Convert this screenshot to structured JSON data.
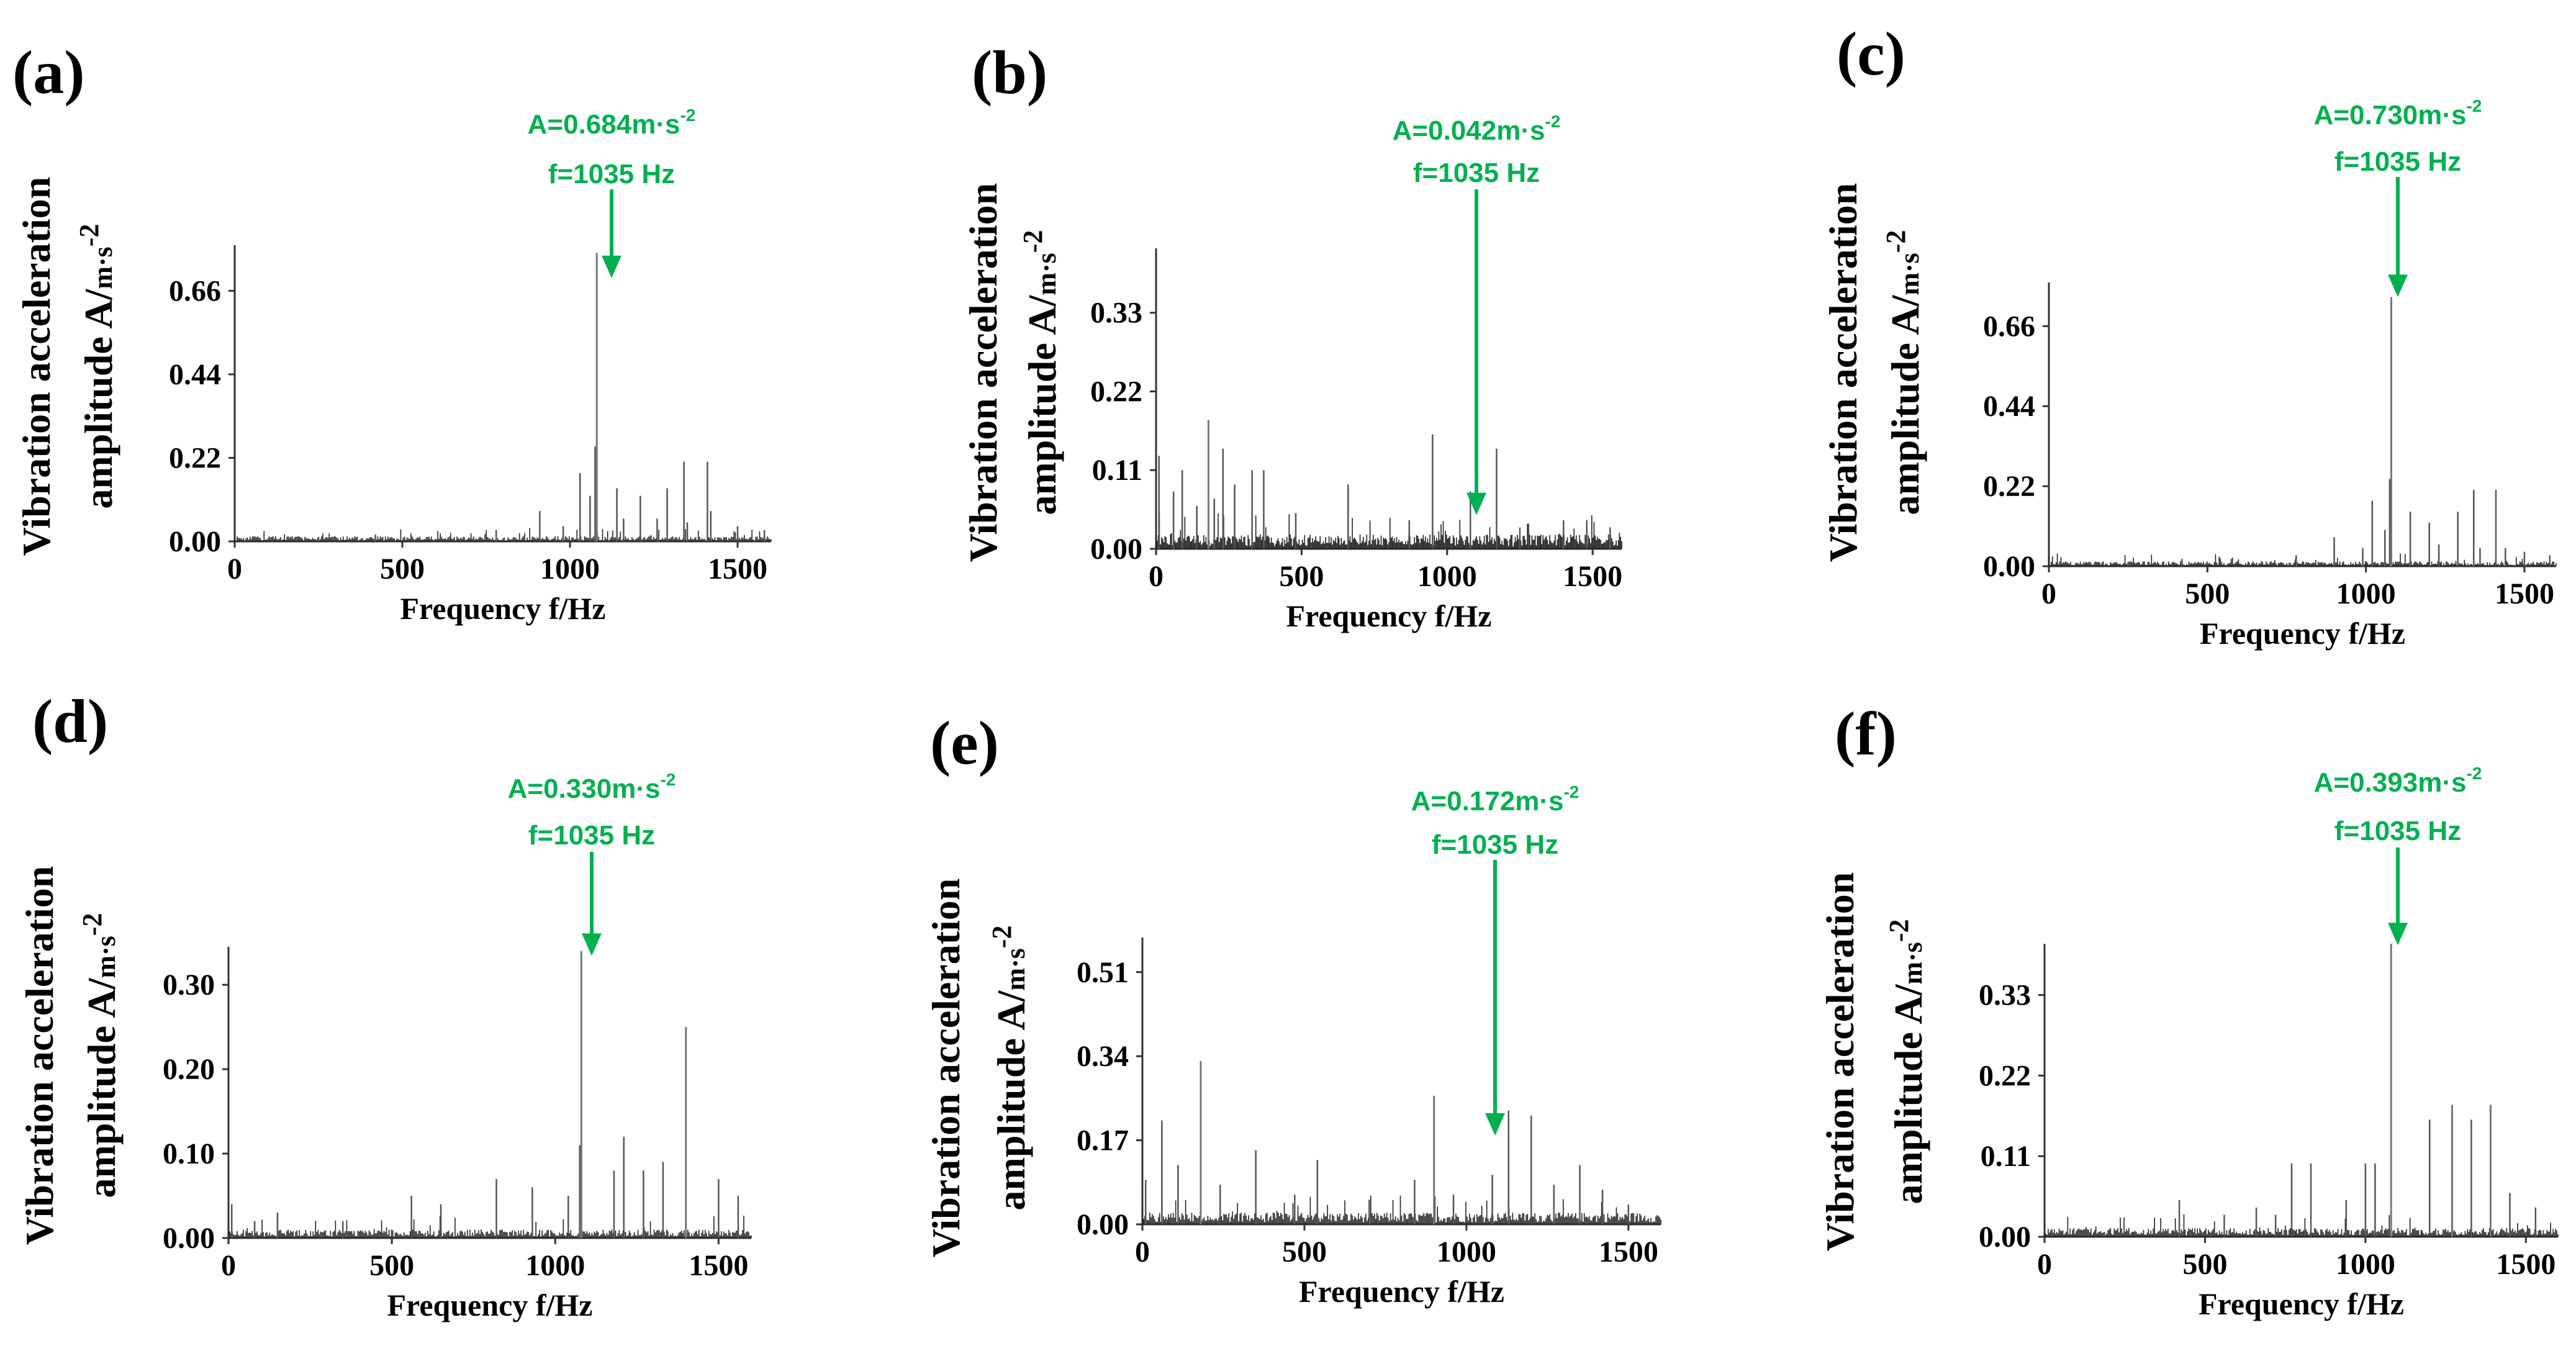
{
  "figure": {
    "y_unit": "m·s",
    "y_unit_exp": "-2"
  },
  "chart_data": [
    {
      "type": "line",
      "panel": "(a)",
      "title": "",
      "ylabel_line1": "Vibration acceleration",
      "ylabel_line2": "amplitude A/",
      "xlabel": "Frequency f/Hz",
      "xlim": [
        0,
        1600
      ],
      "ylim": [
        0,
        0.78
      ],
      "yticks": [
        "0.00",
        "0.22",
        "0.44",
        "0.66"
      ],
      "xticks": [
        "0",
        "500",
        "1000",
        "1500"
      ],
      "annotation": {
        "amp_label": "A=0.684m·s",
        "exp": "-2",
        "freq_label": "f=1035 Hz",
        "x": 1035,
        "y": 0.684
      },
      "peaks": [
        {
          "f": 250,
          "a": 0.012
        },
        {
          "f": 420,
          "a": 0.018
        },
        {
          "f": 780,
          "a": 0.03
        },
        {
          "f": 910,
          "a": 0.08
        },
        {
          "f": 980,
          "a": 0.04
        },
        {
          "f": 1030,
          "a": 0.18
        },
        {
          "f": 1060,
          "a": 0.12
        },
        {
          "f": 1075,
          "a": 0.25
        },
        {
          "f": 1080,
          "a": 0.76
        },
        {
          "f": 1140,
          "a": 0.14
        },
        {
          "f": 1160,
          "a": 0.06
        },
        {
          "f": 1210,
          "a": 0.12
        },
        {
          "f": 1260,
          "a": 0.06
        },
        {
          "f": 1290,
          "a": 0.14
        },
        {
          "f": 1340,
          "a": 0.21
        },
        {
          "f": 1350,
          "a": 0.05
        },
        {
          "f": 1410,
          "a": 0.21
        },
        {
          "f": 1420,
          "a": 0.08
        },
        {
          "f": 1500,
          "a": 0.04
        },
        {
          "f": 1580,
          "a": 0.03
        }
      ],
      "noise_level": 0.008
    },
    {
      "type": "line",
      "panel": "(b)",
      "title": "",
      "ylabel_line1": "Vibration acceleration",
      "ylabel_line2": "amplitude  A/",
      "xlabel": "Frequency f/Hz",
      "xlim": [
        0,
        1600
      ],
      "ylim": [
        0,
        0.42
      ],
      "yticks": [
        "0.00",
        "0.11",
        "0.22",
        "0.33"
      ],
      "xticks": [
        "0",
        "500",
        "1000",
        "1500"
      ],
      "annotation": {
        "amp_label": "A=0.042m·s",
        "exp": "-2",
        "freq_label": "f=1035 Hz",
        "x": 1035,
        "y": 0.042
      },
      "peaks": [
        {
          "f": 10,
          "a": 0.13
        },
        {
          "f": 60,
          "a": 0.08
        },
        {
          "f": 90,
          "a": 0.11
        },
        {
          "f": 140,
          "a": 0.06
        },
        {
          "f": 180,
          "a": 0.18
        },
        {
          "f": 200,
          "a": 0.07
        },
        {
          "f": 230,
          "a": 0.14
        },
        {
          "f": 270,
          "a": 0.09
        },
        {
          "f": 330,
          "a": 0.11
        },
        {
          "f": 370,
          "a": 0.11
        },
        {
          "f": 480,
          "a": 0.05
        },
        {
          "f": 660,
          "a": 0.09
        },
        {
          "f": 870,
          "a": 0.04
        },
        {
          "f": 950,
          "a": 0.16
        },
        {
          "f": 1080,
          "a": 0.08
        },
        {
          "f": 1170,
          "a": 0.14
        },
        {
          "f": 1250,
          "a": 0.03
        },
        {
          "f": 1400,
          "a": 0.04
        },
        {
          "f": 1480,
          "a": 0.04
        },
        {
          "f": 1560,
          "a": 0.03
        }
      ],
      "noise_level": 0.012
    },
    {
      "type": "line",
      "panel": "(c)",
      "title": "",
      "ylabel_line1": "Vibration acceleration",
      "ylabel_line2": "amplitude A/",
      "xlabel": "Frequency f/Hz",
      "xlim": [
        0,
        1600
      ],
      "ylim": [
        0,
        0.78
      ],
      "yticks": [
        "0.00",
        "0.22",
        "0.44",
        "0.66"
      ],
      "xticks": [
        "0",
        "500",
        "1000",
        "1500"
      ],
      "annotation": {
        "amp_label": "A=0.730m·s",
        "exp": "-2",
        "freq_label": "f=1035 Hz",
        "x": 1035,
        "y": 0.73
      },
      "peaks": [
        {
          "f": 250,
          "a": 0.012
        },
        {
          "f": 420,
          "a": 0.02
        },
        {
          "f": 780,
          "a": 0.03
        },
        {
          "f": 900,
          "a": 0.08
        },
        {
          "f": 990,
          "a": 0.05
        },
        {
          "f": 1020,
          "a": 0.18
        },
        {
          "f": 1060,
          "a": 0.1
        },
        {
          "f": 1075,
          "a": 0.24
        },
        {
          "f": 1080,
          "a": 0.74
        },
        {
          "f": 1140,
          "a": 0.15
        },
        {
          "f": 1200,
          "a": 0.12
        },
        {
          "f": 1230,
          "a": 0.06
        },
        {
          "f": 1290,
          "a": 0.15
        },
        {
          "f": 1340,
          "a": 0.21
        },
        {
          "f": 1360,
          "a": 0.05
        },
        {
          "f": 1410,
          "a": 0.21
        },
        {
          "f": 1440,
          "a": 0.05
        },
        {
          "f": 1500,
          "a": 0.04
        },
        {
          "f": 1580,
          "a": 0.03
        }
      ],
      "noise_level": 0.008
    },
    {
      "type": "line",
      "panel": "(d)",
      "title": "",
      "ylabel_line1": "Vibration acceleration",
      "ylabel_line2": "amplitude A/",
      "xlabel": "Frequency f/Hz",
      "xlim": [
        0,
        1600
      ],
      "ylim": [
        0,
        0.345
      ],
      "yticks": [
        "0.00",
        "0.10",
        "0.20",
        "0.30"
      ],
      "xticks": [
        "0",
        "500",
        "1000",
        "1500"
      ],
      "annotation": {
        "amp_label": "A=0.330m·s",
        "exp": "-2",
        "freq_label": "f=1035 Hz",
        "x": 1035,
        "y": 0.33
      },
      "peaks": [
        {
          "f": 10,
          "a": 0.04
        },
        {
          "f": 80,
          "a": 0.02
        },
        {
          "f": 150,
          "a": 0.03
        },
        {
          "f": 350,
          "a": 0.02
        },
        {
          "f": 560,
          "a": 0.05
        },
        {
          "f": 650,
          "a": 0.04
        },
        {
          "f": 820,
          "a": 0.07
        },
        {
          "f": 930,
          "a": 0.06
        },
        {
          "f": 1040,
          "a": 0.05
        },
        {
          "f": 1075,
          "a": 0.11
        },
        {
          "f": 1080,
          "a": 0.34
        },
        {
          "f": 1180,
          "a": 0.08
        },
        {
          "f": 1210,
          "a": 0.12
        },
        {
          "f": 1270,
          "a": 0.08
        },
        {
          "f": 1330,
          "a": 0.09
        },
        {
          "f": 1400,
          "a": 0.25
        },
        {
          "f": 1500,
          "a": 0.07
        },
        {
          "f": 1560,
          "a": 0.05
        }
      ],
      "noise_level": 0.006
    },
    {
      "type": "line",
      "panel": "(e)",
      "title": "",
      "ylabel_line1": "Vibration acceleration",
      "ylabel_line2": "amplitude  A/",
      "xlabel": "Frequency f/Hz",
      "xlim": [
        0,
        1600
      ],
      "ylim": [
        0,
        0.58
      ],
      "yticks": [
        "0.00",
        "0.17",
        "0.34",
        "0.51"
      ],
      "xticks": [
        "0",
        "500",
        "1000",
        "1500"
      ],
      "annotation": {
        "amp_label": "A=0.172m·s",
        "exp": "-2",
        "freq_label": "f=1035 Hz",
        "x": 1035,
        "y": 0.172
      },
      "peaks": [
        {
          "f": 10,
          "a": 0.09
        },
        {
          "f": 60,
          "a": 0.21
        },
        {
          "f": 110,
          "a": 0.12
        },
        {
          "f": 180,
          "a": 0.33
        },
        {
          "f": 240,
          "a": 0.08
        },
        {
          "f": 350,
          "a": 0.15
        },
        {
          "f": 470,
          "a": 0.06
        },
        {
          "f": 540,
          "a": 0.13
        },
        {
          "f": 700,
          "a": 0.05
        },
        {
          "f": 840,
          "a": 0.09
        },
        {
          "f": 900,
          "a": 0.26
        },
        {
          "f": 960,
          "a": 0.06
        },
        {
          "f": 1080,
          "a": 0.1
        },
        {
          "f": 1130,
          "a": 0.23
        },
        {
          "f": 1200,
          "a": 0.22
        },
        {
          "f": 1270,
          "a": 0.08
        },
        {
          "f": 1350,
          "a": 0.12
        },
        {
          "f": 1420,
          "a": 0.07
        },
        {
          "f": 1500,
          "a": 0.04
        }
      ],
      "noise_level": 0.014
    },
    {
      "type": "line",
      "panel": "(f)",
      "title": "",
      "ylabel_line1": "Vibration acceleration",
      "ylabel_line2": "amplitude A/",
      "xlabel": "Frequency f/Hz",
      "xlim": [
        0,
        1600
      ],
      "ylim": [
        0,
        0.4
      ],
      "yticks": [
        "0.00",
        "0.11",
        "0.22",
        "0.33"
      ],
      "xticks": [
        "0",
        "500",
        "1000",
        "1500"
      ],
      "annotation": {
        "amp_label": "A=0.393m·s",
        "exp": "-2",
        "freq_label": "f=1035 Hz",
        "x": 1035,
        "y": 0.393
      },
      "peaks": [
        {
          "f": 420,
          "a": 0.05
        },
        {
          "f": 560,
          "a": 0.03
        },
        {
          "f": 660,
          "a": 0.04
        },
        {
          "f": 720,
          "a": 0.03
        },
        {
          "f": 770,
          "a": 0.1
        },
        {
          "f": 830,
          "a": 0.1
        },
        {
          "f": 940,
          "a": 0.05
        },
        {
          "f": 1000,
          "a": 0.1
        },
        {
          "f": 1030,
          "a": 0.1
        },
        {
          "f": 1080,
          "a": 0.4
        },
        {
          "f": 1200,
          "a": 0.16
        },
        {
          "f": 1270,
          "a": 0.18
        },
        {
          "f": 1330,
          "a": 0.16
        },
        {
          "f": 1390,
          "a": 0.18
        },
        {
          "f": 1450,
          "a": 0.06
        },
        {
          "f": 1530,
          "a": 0.04
        }
      ],
      "noise_level": 0.007
    }
  ]
}
